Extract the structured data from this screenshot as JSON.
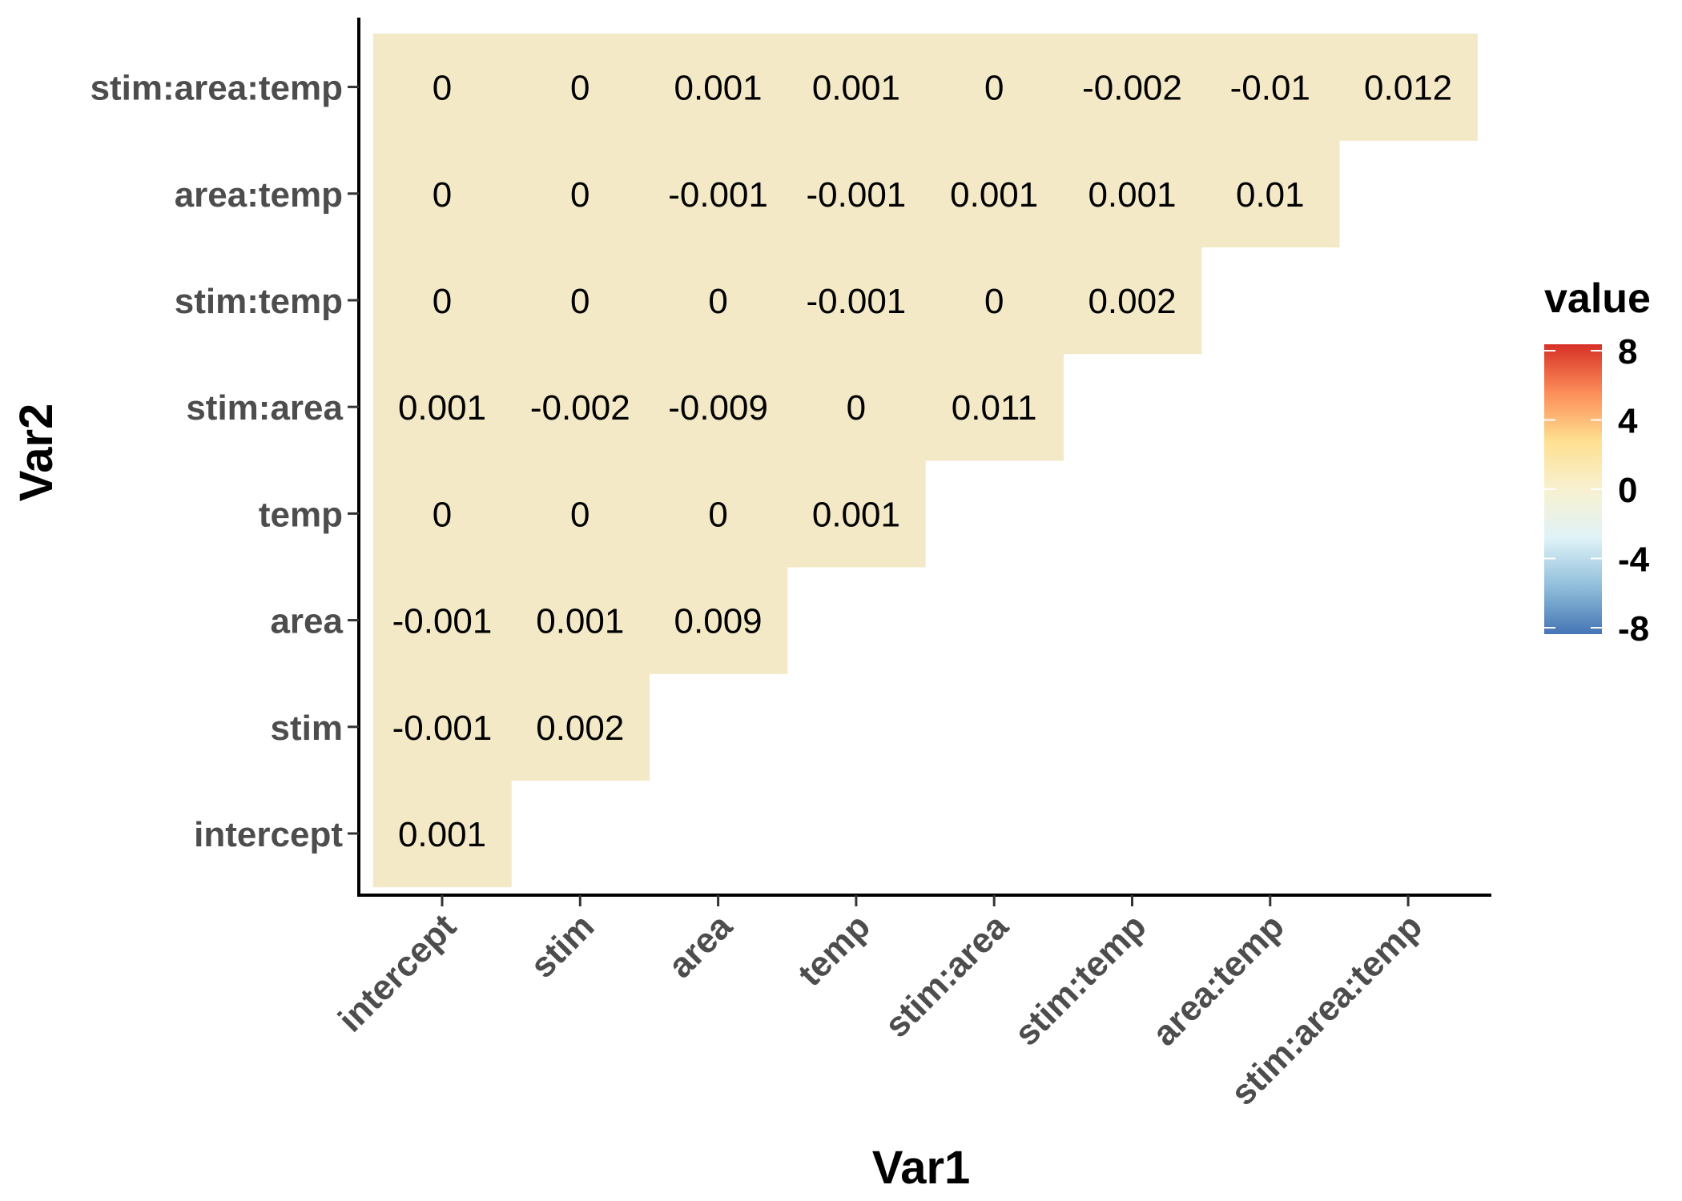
{
  "chart_data": {
    "type": "heatmap",
    "xlabel": "Var1",
    "ylabel": "Var2",
    "x_categories": [
      "intercept",
      "stim",
      "area",
      "temp",
      "stim:area",
      "stim:temp",
      "area:temp",
      "stim:area:temp"
    ],
    "y_categories": [
      "intercept",
      "stim",
      "area",
      "temp",
      "stim:area",
      "stim:temp",
      "area:temp",
      "stim:area:temp"
    ],
    "cells": [
      {
        "x": "intercept",
        "y": "intercept",
        "value": 0.001
      },
      {
        "x": "intercept",
        "y": "stim",
        "value": -0.001
      },
      {
        "x": "stim",
        "y": "stim",
        "value": 0.002
      },
      {
        "x": "intercept",
        "y": "area",
        "value": -0.001
      },
      {
        "x": "stim",
        "y": "area",
        "value": 0.001
      },
      {
        "x": "area",
        "y": "area",
        "value": 0.009
      },
      {
        "x": "intercept",
        "y": "temp",
        "value": 0
      },
      {
        "x": "stim",
        "y": "temp",
        "value": 0
      },
      {
        "x": "area",
        "y": "temp",
        "value": 0
      },
      {
        "x": "temp",
        "y": "temp",
        "value": 0.001
      },
      {
        "x": "intercept",
        "y": "stim:area",
        "value": 0.001
      },
      {
        "x": "stim",
        "y": "stim:area",
        "value": -0.002
      },
      {
        "x": "area",
        "y": "stim:area",
        "value": -0.009
      },
      {
        "x": "temp",
        "y": "stim:area",
        "value": 0
      },
      {
        "x": "stim:area",
        "y": "stim:area",
        "value": 0.011
      },
      {
        "x": "intercept",
        "y": "stim:temp",
        "value": 0
      },
      {
        "x": "stim",
        "y": "stim:temp",
        "value": 0
      },
      {
        "x": "area",
        "y": "stim:temp",
        "value": 0
      },
      {
        "x": "temp",
        "y": "stim:temp",
        "value": -0.001
      },
      {
        "x": "stim:area",
        "y": "stim:temp",
        "value": 0
      },
      {
        "x": "stim:temp",
        "y": "stim:temp",
        "value": 0.002
      },
      {
        "x": "intercept",
        "y": "area:temp",
        "value": 0
      },
      {
        "x": "stim",
        "y": "area:temp",
        "value": 0
      },
      {
        "x": "area",
        "y": "area:temp",
        "value": -0.001
      },
      {
        "x": "temp",
        "y": "area:temp",
        "value": -0.001
      },
      {
        "x": "stim:area",
        "y": "area:temp",
        "value": 0.001
      },
      {
        "x": "stim:temp",
        "y": "area:temp",
        "value": 0.001
      },
      {
        "x": "area:temp",
        "y": "area:temp",
        "value": 0.01
      },
      {
        "x": "intercept",
        "y": "stim:area:temp",
        "value": 0
      },
      {
        "x": "stim",
        "y": "stim:area:temp",
        "value": 0
      },
      {
        "x": "area",
        "y": "stim:area:temp",
        "value": 0.001
      },
      {
        "x": "temp",
        "y": "stim:area:temp",
        "value": 0.001
      },
      {
        "x": "stim:area",
        "y": "stim:area:temp",
        "value": 0
      },
      {
        "x": "stim:temp",
        "y": "stim:area:temp",
        "value": -0.002
      },
      {
        "x": "area:temp",
        "y": "stim:area:temp",
        "value": -0.01
      },
      {
        "x": "stim:area:temp",
        "y": "stim:area:temp",
        "value": 0.012
      }
    ],
    "legend": {
      "title": "value",
      "position": "right",
      "range": [
        -8,
        8
      ],
      "ticks": [
        8,
        4,
        0,
        -4,
        -8
      ],
      "colors": [
        "#4575b4",
        "#91bfdb",
        "#e0f3f8",
        "#f8f1d0",
        "#fee090",
        "#fc8d59",
        "#d73027"
      ]
    },
    "cell_color": "#f3e9c6",
    "grid": false
  }
}
